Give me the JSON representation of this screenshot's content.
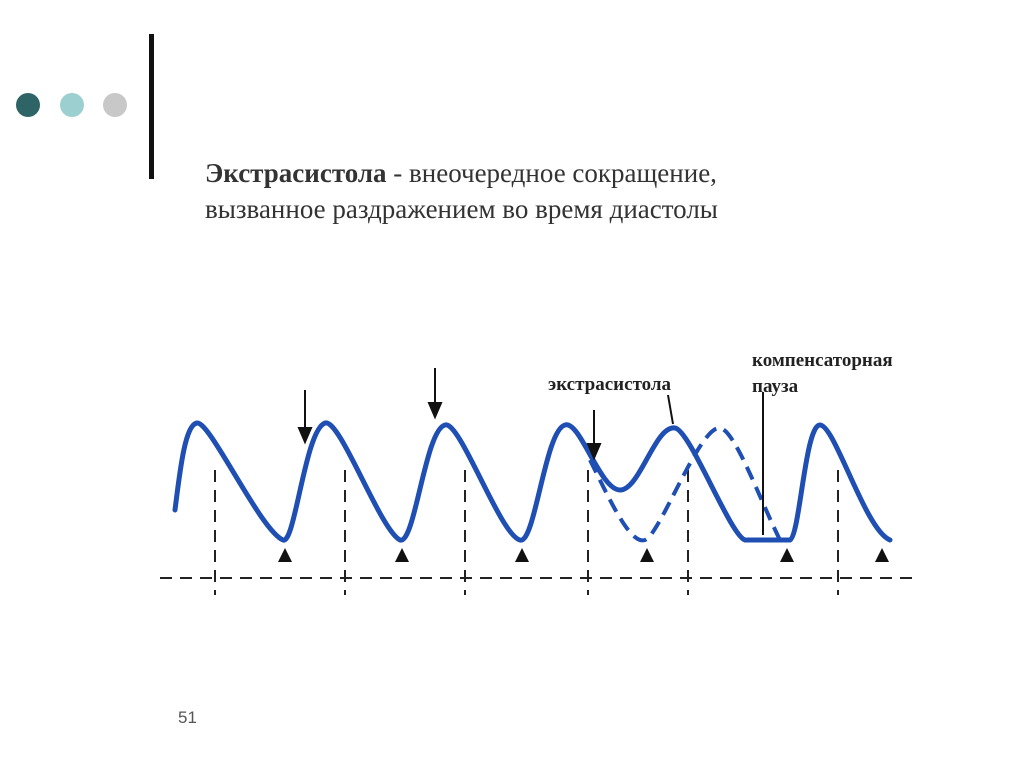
{
  "header": {
    "term": "Экстрасистола",
    "line1_rest": "- внеочередное сокращение,",
    "line2": "вызванное раздражением во время диастолы"
  },
  "diagram": {
    "extrasystole_label": "экстрасистола",
    "pause_label_line1": "компенсаторная",
    "pause_label_line2": "пауза"
  },
  "footer": {
    "page_number": "51"
  }
}
